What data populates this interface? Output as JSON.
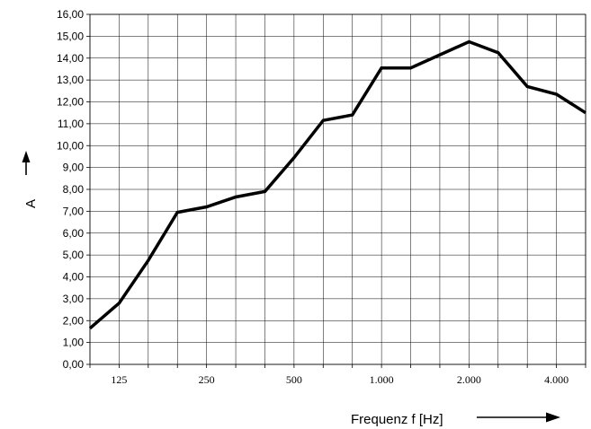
{
  "chart_data": {
    "type": "line",
    "title": "",
    "xlabel": "Frequenz f [Hz]",
    "ylabel": "A",
    "x": [
      100,
      125,
      160,
      200,
      250,
      315,
      400,
      500,
      630,
      800,
      1000,
      1250,
      1600,
      2000,
      2500,
      3150,
      4000,
      5000
    ],
    "x_tick_labels": [
      "125",
      "250",
      "500",
      "1.000",
      "2.000",
      "4.000"
    ],
    "x_tick_positions": [
      125,
      250,
      500,
      1000,
      2000,
      4000
    ],
    "y_tick_labels": [
      "0,00",
      "1,00",
      "2,00",
      "3,00",
      "4,00",
      "5,00",
      "6,00",
      "7,00",
      "8,00",
      "9,00",
      "10,00",
      "11,00",
      "12,00",
      "13,00",
      "14,00",
      "15,00",
      "16,00"
    ],
    "ylim": [
      0,
      16
    ],
    "grid": true,
    "series": [
      {
        "values": [
          1.65,
          2.8,
          4.75,
          6.95,
          7.2,
          7.65,
          7.9,
          9.45,
          11.15,
          11.4,
          13.55,
          13.55,
          14.15,
          14.75,
          14.25,
          12.7,
          12.35,
          11.5
        ]
      }
    ],
    "colors": {
      "line": "#000000",
      "grid": "#000000"
    }
  }
}
